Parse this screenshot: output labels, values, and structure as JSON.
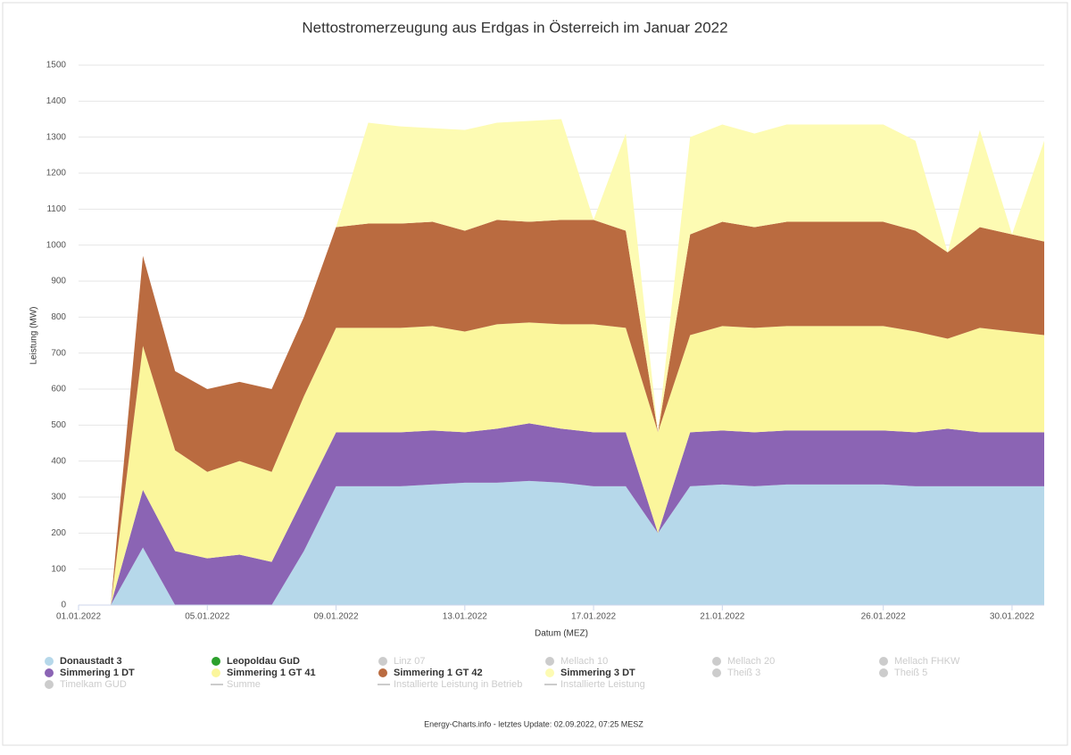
{
  "chart_data": {
    "type": "stacked_area",
    "title": "Nettostromerzeugung aus Erdgas in Österreich im Januar 2022",
    "y_label": "Leistung (MW)",
    "x_label": "Datum (MEZ)",
    "footer": "Energy-Charts.info - letztes Update: 02.09.2022, 07:25 MESZ",
    "x": [
      "01.01.2022",
      "02.01.2022",
      "03.01.2022",
      "04.01.2022",
      "05.01.2022",
      "06.01.2022",
      "07.01.2022",
      "08.01.2022",
      "09.01.2022",
      "10.01.2022",
      "11.01.2022",
      "12.01.2022",
      "13.01.2022",
      "14.01.2022",
      "15.01.2022",
      "16.01.2022",
      "17.01.2022",
      "18.01.2022",
      "19.01.2022",
      "20.01.2022",
      "21.01.2022",
      "22.01.2022",
      "23.01.2022",
      "24.01.2022",
      "25.01.2022",
      "26.01.2022",
      "27.01.2022",
      "28.01.2022",
      "29.01.2022",
      "30.01.2022",
      "31.01.2022"
    ],
    "xticks": [
      "01.01.2022",
      "05.01.2022",
      "09.01.2022",
      "13.01.2022",
      "17.01.2022",
      "21.01.2022",
      "26.01.2022",
      "30.01.2022"
    ],
    "ylim": [
      0,
      1500
    ],
    "yticks": [
      0,
      100,
      200,
      300,
      400,
      500,
      600,
      700,
      800,
      900,
      1000,
      1100,
      1200,
      1300,
      1400,
      1500
    ],
    "grid": true,
    "series": [
      {
        "name": "Donaustadt 3",
        "color": "#b6d8ea",
        "values": [
          0,
          0,
          160,
          0,
          0,
          0,
          0,
          150,
          330,
          330,
          330,
          335,
          340,
          340,
          345,
          340,
          330,
          330,
          200,
          330,
          335,
          330,
          335,
          335,
          335,
          335,
          330,
          330,
          330,
          330,
          330
        ]
      },
      {
        "name": "Leopoldau GuD",
        "color": "#2ca02c",
        "values": [
          0,
          0,
          0,
          0,
          0,
          0,
          0,
          0,
          0,
          0,
          0,
          0,
          0,
          0,
          0,
          0,
          0,
          0,
          0,
          0,
          0,
          0,
          0,
          0,
          0,
          0,
          0,
          0,
          0,
          0,
          0
        ]
      },
      {
        "name": "Linz 07",
        "color": "#cccccc",
        "visible": false
      },
      {
        "name": "Mellach 10",
        "color": "#cccccc",
        "visible": false
      },
      {
        "name": "Mellach 20",
        "color": "#cccccc",
        "visible": false
      },
      {
        "name": "Mellach FHKW",
        "color": "#cccccc",
        "visible": false
      },
      {
        "name": "Simmering 1 DT",
        "color": "#8b64b4",
        "values": [
          0,
          0,
          160,
          150,
          130,
          140,
          120,
          150,
          150,
          150,
          150,
          150,
          140,
          150,
          160,
          150,
          150,
          150,
          0,
          150,
          150,
          150,
          150,
          150,
          150,
          150,
          150,
          160,
          150,
          150,
          150
        ]
      },
      {
        "name": "Simmering 1 GT 41",
        "color": "#fbf69c",
        "values": [
          0,
          0,
          400,
          280,
          240,
          260,
          250,
          280,
          290,
          290,
          290,
          290,
          280,
          290,
          280,
          290,
          300,
          290,
          280,
          270,
          290,
          290,
          290,
          290,
          290,
          290,
          280,
          250,
          290,
          280,
          270
        ]
      },
      {
        "name": "Simmering 1 GT 42",
        "color": "#ba6b40",
        "values": [
          0,
          0,
          250,
          220,
          230,
          220,
          230,
          220,
          280,
          290,
          290,
          290,
          280,
          290,
          280,
          290,
          290,
          270,
          0,
          280,
          290,
          280,
          290,
          290,
          290,
          290,
          280,
          240,
          280,
          270,
          260
        ]
      },
      {
        "name": "Simmering 3 DT",
        "color": "#fdfbb3",
        "values": [
          0,
          0,
          0,
          0,
          0,
          0,
          0,
          0,
          0,
          280,
          270,
          260,
          280,
          270,
          280,
          280,
          0,
          270,
          0,
          270,
          270,
          260,
          270,
          270,
          270,
          270,
          250,
          0,
          270,
          0,
          280
        ]
      },
      {
        "name": "Theiß 3",
        "color": "#cccccc",
        "visible": false
      },
      {
        "name": "Theiß 5",
        "color": "#cccccc",
        "visible": false
      },
      {
        "name": "Timelkam GUD",
        "color": "#cccccc",
        "visible": false
      },
      {
        "name": "Summe",
        "color": "#cccccc",
        "visible": false,
        "marker": "line"
      },
      {
        "name": "Installierte Leistung in Betrieb",
        "color": "#cccccc",
        "visible": false,
        "marker": "line"
      },
      {
        "name": "Installierte Leistung",
        "color": "#cccccc",
        "visible": false,
        "marker": "line"
      }
    ]
  }
}
